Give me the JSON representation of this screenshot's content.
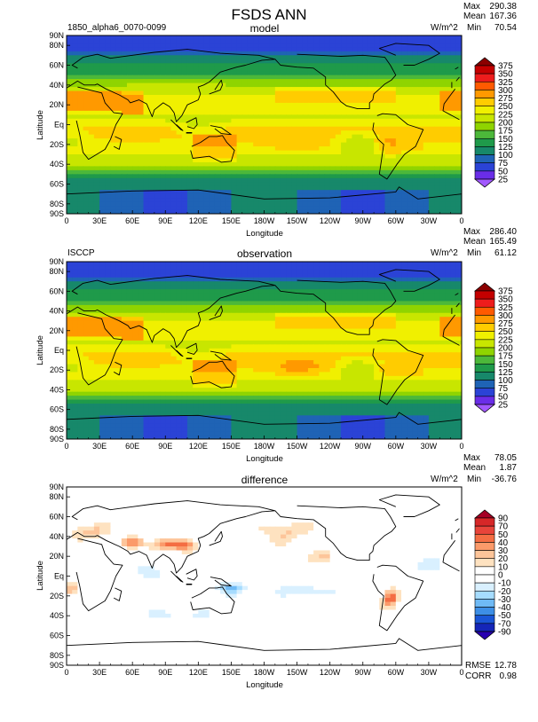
{
  "title": "FSDS ANN",
  "units": "W/m^2",
  "stat_labels": {
    "max": "Max",
    "mean": "Mean",
    "min": "Min",
    "rmse": "RMSE",
    "corr": "CORR"
  },
  "axis": {
    "xlabel": "Longitude",
    "ylabel": "Latitude",
    "x_ticks": [
      "0",
      "30E",
      "60E",
      "90E",
      "120E",
      "150E",
      "180W",
      "150W",
      "120W",
      "90W",
      "60W",
      "30W",
      "0"
    ],
    "y_ticks": [
      "90N",
      "80N",
      "60N",
      "40N",
      "20N",
      "Eq",
      "20S",
      "40S",
      "60S",
      "80S",
      "90S"
    ]
  },
  "chart_data": [
    {
      "type": "heatmap",
      "panel": "model",
      "title": "model",
      "case": "1850_alpha6_0070-0099",
      "units": "W/m^2",
      "stats": {
        "max": "290.38",
        "mean": "167.36",
        "min": "70.54"
      },
      "xlabel": "Longitude",
      "ylabel": "Latitude",
      "xlim": [
        0,
        360
      ],
      "ylim": [
        -90,
        90
      ],
      "colorbar": {
        "levels": [
          "375",
          "350",
          "325",
          "300",
          "275",
          "250",
          "225",
          "200",
          "175",
          "150",
          "125",
          "100",
          "75",
          "50",
          "25"
        ],
        "colors": [
          "#8b0000",
          "#c40000",
          "#ee1c1c",
          "#ff5a00",
          "#ff9900",
          "#ffcc00",
          "#f0f000",
          "#c8e600",
          "#8fd400",
          "#4cb83a",
          "#1f9a4a",
          "#17886a",
          "#1f63b5",
          "#2b43d6",
          "#6a2de8",
          "#a259ff"
        ]
      }
    },
    {
      "type": "heatmap",
      "panel": "observation",
      "title": "observation",
      "case": "ISCCP",
      "units": "W/m^2",
      "stats": {
        "max": "286.40",
        "mean": "165.49",
        "min": "61.12"
      },
      "xlabel": "Longitude",
      "ylabel": "Latitude",
      "xlim": [
        0,
        360
      ],
      "ylim": [
        -90,
        90
      ],
      "colorbar": {
        "levels": [
          "375",
          "350",
          "325",
          "300",
          "275",
          "250",
          "225",
          "200",
          "175",
          "150",
          "125",
          "100",
          "75",
          "50",
          "25"
        ],
        "colors": [
          "#8b0000",
          "#c40000",
          "#ee1c1c",
          "#ff5a00",
          "#ff9900",
          "#ffcc00",
          "#f0f000",
          "#c8e600",
          "#8fd400",
          "#4cb83a",
          "#1f9a4a",
          "#17886a",
          "#1f63b5",
          "#2b43d6",
          "#6a2de8",
          "#a259ff"
        ]
      }
    },
    {
      "type": "heatmap",
      "panel": "difference",
      "title": "difference",
      "case": "",
      "units": "W/m^2",
      "stats": {
        "max": "78.05",
        "mean": "1.87",
        "min": "-36.76",
        "rmse": "12.78",
        "corr": "0.98"
      },
      "xlabel": "Longitude",
      "ylabel": "Latitude",
      "xlim": [
        0,
        360
      ],
      "ylim": [
        -90,
        90
      ],
      "colorbar": {
        "levels": [
          "90",
          "70",
          "50",
          "40",
          "30",
          "20",
          "10",
          "0",
          "-10",
          "-20",
          "-30",
          "-40",
          "-50",
          "-70",
          "-90"
        ],
        "colors": [
          "#a50026",
          "#d62728",
          "#e8443a",
          "#f46d43",
          "#fb9a6a",
          "#fdc59a",
          "#fee2c0",
          "#ffffff",
          "#ffffff",
          "#d9f0ff",
          "#a6dcff",
          "#6fbaf5",
          "#3d8fe6",
          "#1a56d6",
          "#1526b8",
          "#2800b0"
        ]
      }
    }
  ]
}
